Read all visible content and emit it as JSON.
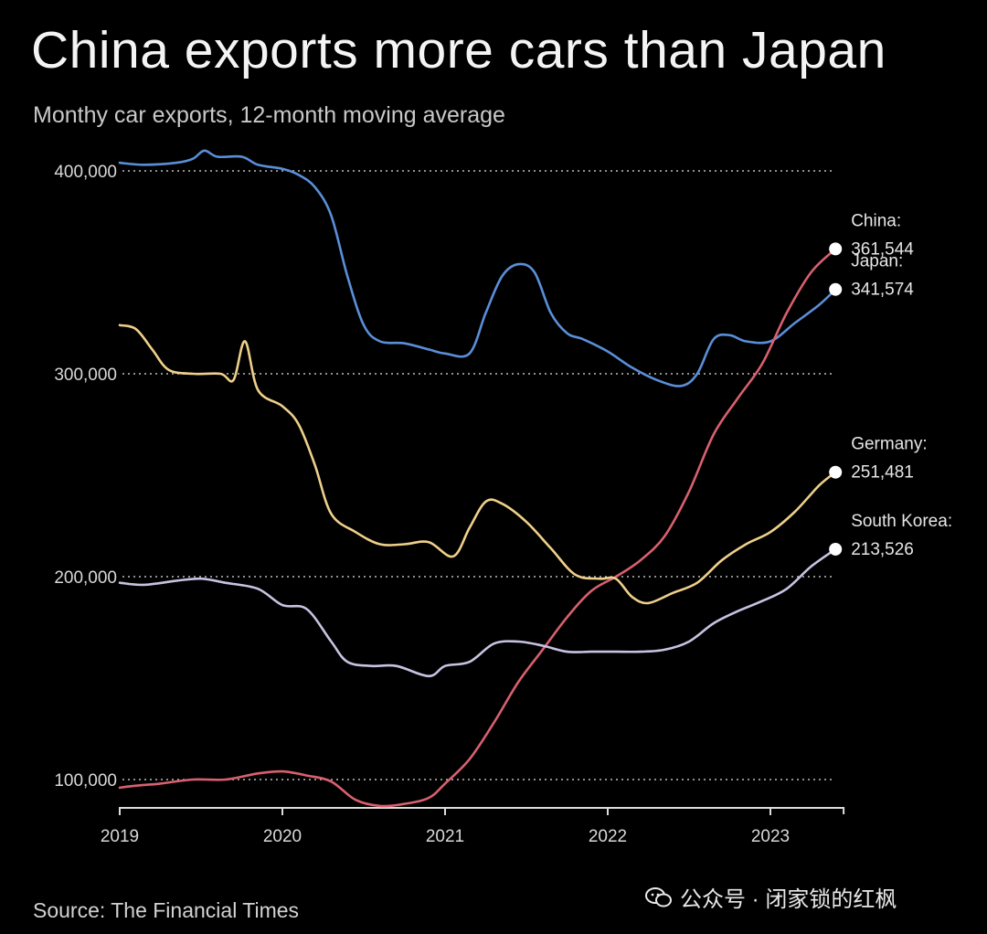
{
  "title": "China exports more cars than Japan",
  "subtitle": "Monthy car exports, 12-month moving average",
  "source": "Source: The Financial Times",
  "watermark": "公众号 · 闭家锁的红枫",
  "chart_data": {
    "type": "line",
    "title": "China exports more cars than Japan",
    "subtitle": "Monthy car exports, 12-month moving average",
    "xlabel": "",
    "ylabel": "",
    "xlim": [
      2019.0,
      2023.45
    ],
    "ylim": [
      87000,
      412000
    ],
    "x_ticks": [
      "2019",
      "2020",
      "2021",
      "2022",
      "2023"
    ],
    "y_ticks": [
      100000,
      200000,
      300000,
      400000
    ],
    "y_tick_labels": [
      "100,000",
      "200,000",
      "300,000",
      "400,000"
    ],
    "grid": "horizontal dotted",
    "legend": "direct labels at line ends (right)",
    "series": [
      {
        "name": "Japan",
        "value_label": "341,574",
        "color": "#5a8fd8",
        "points": [
          [
            2019.0,
            404000
          ],
          [
            2019.15,
            403000
          ],
          [
            2019.35,
            404000
          ],
          [
            2019.45,
            406000
          ],
          [
            2019.52,
            410000
          ],
          [
            2019.6,
            407000
          ],
          [
            2019.75,
            407000
          ],
          [
            2019.85,
            403000
          ],
          [
            2020.0,
            401000
          ],
          [
            2020.1,
            398000
          ],
          [
            2020.2,
            392000
          ],
          [
            2020.3,
            378000
          ],
          [
            2020.4,
            348000
          ],
          [
            2020.5,
            324000
          ],
          [
            2020.6,
            316000
          ],
          [
            2020.75,
            315000
          ],
          [
            2020.9,
            312000
          ],
          [
            2021.0,
            310000
          ],
          [
            2021.15,
            310000
          ],
          [
            2021.25,
            330000
          ],
          [
            2021.35,
            348000
          ],
          [
            2021.45,
            354000
          ],
          [
            2021.55,
            350000
          ],
          [
            2021.65,
            330000
          ],
          [
            2021.75,
            320000
          ],
          [
            2021.85,
            317000
          ],
          [
            2022.0,
            311000
          ],
          [
            2022.15,
            303000
          ],
          [
            2022.3,
            297000
          ],
          [
            2022.45,
            294000
          ],
          [
            2022.55,
            300000
          ],
          [
            2022.65,
            317000
          ],
          [
            2022.75,
            319000
          ],
          [
            2022.85,
            316000
          ],
          [
            2023.0,
            316000
          ],
          [
            2023.15,
            325000
          ],
          [
            2023.3,
            334000
          ],
          [
            2023.4,
            341574
          ]
        ]
      },
      {
        "name": "China",
        "value_label": "361,544",
        "color": "#d9606f",
        "points": [
          [
            2019.0,
            96000
          ],
          [
            2019.1,
            97000
          ],
          [
            2019.25,
            98000
          ],
          [
            2019.45,
            100000
          ],
          [
            2019.65,
            100000
          ],
          [
            2019.85,
            103000
          ],
          [
            2020.0,
            104000
          ],
          [
            2020.15,
            102000
          ],
          [
            2020.3,
            99000
          ],
          [
            2020.45,
            90000
          ],
          [
            2020.6,
            87000
          ],
          [
            2020.75,
            88000
          ],
          [
            2020.9,
            91000
          ],
          [
            2021.0,
            98000
          ],
          [
            2021.15,
            110000
          ],
          [
            2021.3,
            128000
          ],
          [
            2021.45,
            148000
          ],
          [
            2021.6,
            164000
          ],
          [
            2021.75,
            180000
          ],
          [
            2021.9,
            193000
          ],
          [
            2022.05,
            200000
          ],
          [
            2022.2,
            208000
          ],
          [
            2022.35,
            220000
          ],
          [
            2022.5,
            242000
          ],
          [
            2022.65,
            270000
          ],
          [
            2022.8,
            288000
          ],
          [
            2022.95,
            305000
          ],
          [
            2023.1,
            330000
          ],
          [
            2023.25,
            350000
          ],
          [
            2023.4,
            361544
          ]
        ]
      },
      {
        "name": "Germany",
        "value_label": "251,481",
        "color": "#eed08a",
        "points": [
          [
            2019.0,
            324000
          ],
          [
            2019.1,
            322000
          ],
          [
            2019.2,
            312000
          ],
          [
            2019.3,
            302000
          ],
          [
            2019.45,
            300000
          ],
          [
            2019.62,
            300000
          ],
          [
            2019.7,
            297000
          ],
          [
            2019.77,
            316000
          ],
          [
            2019.85,
            292000
          ],
          [
            2020.0,
            284000
          ],
          [
            2020.1,
            275000
          ],
          [
            2020.2,
            255000
          ],
          [
            2020.3,
            231000
          ],
          [
            2020.45,
            222000
          ],
          [
            2020.6,
            216000
          ],
          [
            2020.75,
            216000
          ],
          [
            2020.9,
            217000
          ],
          [
            2021.05,
            210000
          ],
          [
            2021.15,
            224000
          ],
          [
            2021.25,
            237000
          ],
          [
            2021.35,
            236000
          ],
          [
            2021.5,
            227000
          ],
          [
            2021.65,
            214000
          ],
          [
            2021.8,
            201000
          ],
          [
            2021.95,
            199000
          ],
          [
            2022.05,
            199000
          ],
          [
            2022.15,
            190000
          ],
          [
            2022.25,
            187000
          ],
          [
            2022.4,
            192000
          ],
          [
            2022.55,
            197000
          ],
          [
            2022.7,
            208000
          ],
          [
            2022.85,
            216000
          ],
          [
            2023.0,
            222000
          ],
          [
            2023.15,
            232000
          ],
          [
            2023.3,
            245000
          ],
          [
            2023.4,
            251481
          ]
        ]
      },
      {
        "name": "South Korea",
        "value_label": "213,526",
        "color": "#c9c2e2",
        "points": [
          [
            2019.0,
            197000
          ],
          [
            2019.15,
            196000
          ],
          [
            2019.35,
            198000
          ],
          [
            2019.5,
            199000
          ],
          [
            2019.65,
            197000
          ],
          [
            2019.85,
            194000
          ],
          [
            2020.0,
            186000
          ],
          [
            2020.15,
            184000
          ],
          [
            2020.3,
            168000
          ],
          [
            2020.4,
            158000
          ],
          [
            2020.55,
            156000
          ],
          [
            2020.7,
            156000
          ],
          [
            2020.9,
            151000
          ],
          [
            2021.0,
            156000
          ],
          [
            2021.15,
            158000
          ],
          [
            2021.3,
            167000
          ],
          [
            2021.45,
            168000
          ],
          [
            2021.6,
            166000
          ],
          [
            2021.75,
            163000
          ],
          [
            2021.9,
            163000
          ],
          [
            2022.05,
            163000
          ],
          [
            2022.2,
            163000
          ],
          [
            2022.35,
            164000
          ],
          [
            2022.5,
            168000
          ],
          [
            2022.65,
            177000
          ],
          [
            2022.8,
            183000
          ],
          [
            2022.95,
            188000
          ],
          [
            2023.1,
            194000
          ],
          [
            2023.25,
            205000
          ],
          [
            2023.4,
            213526
          ]
        ]
      }
    ]
  }
}
